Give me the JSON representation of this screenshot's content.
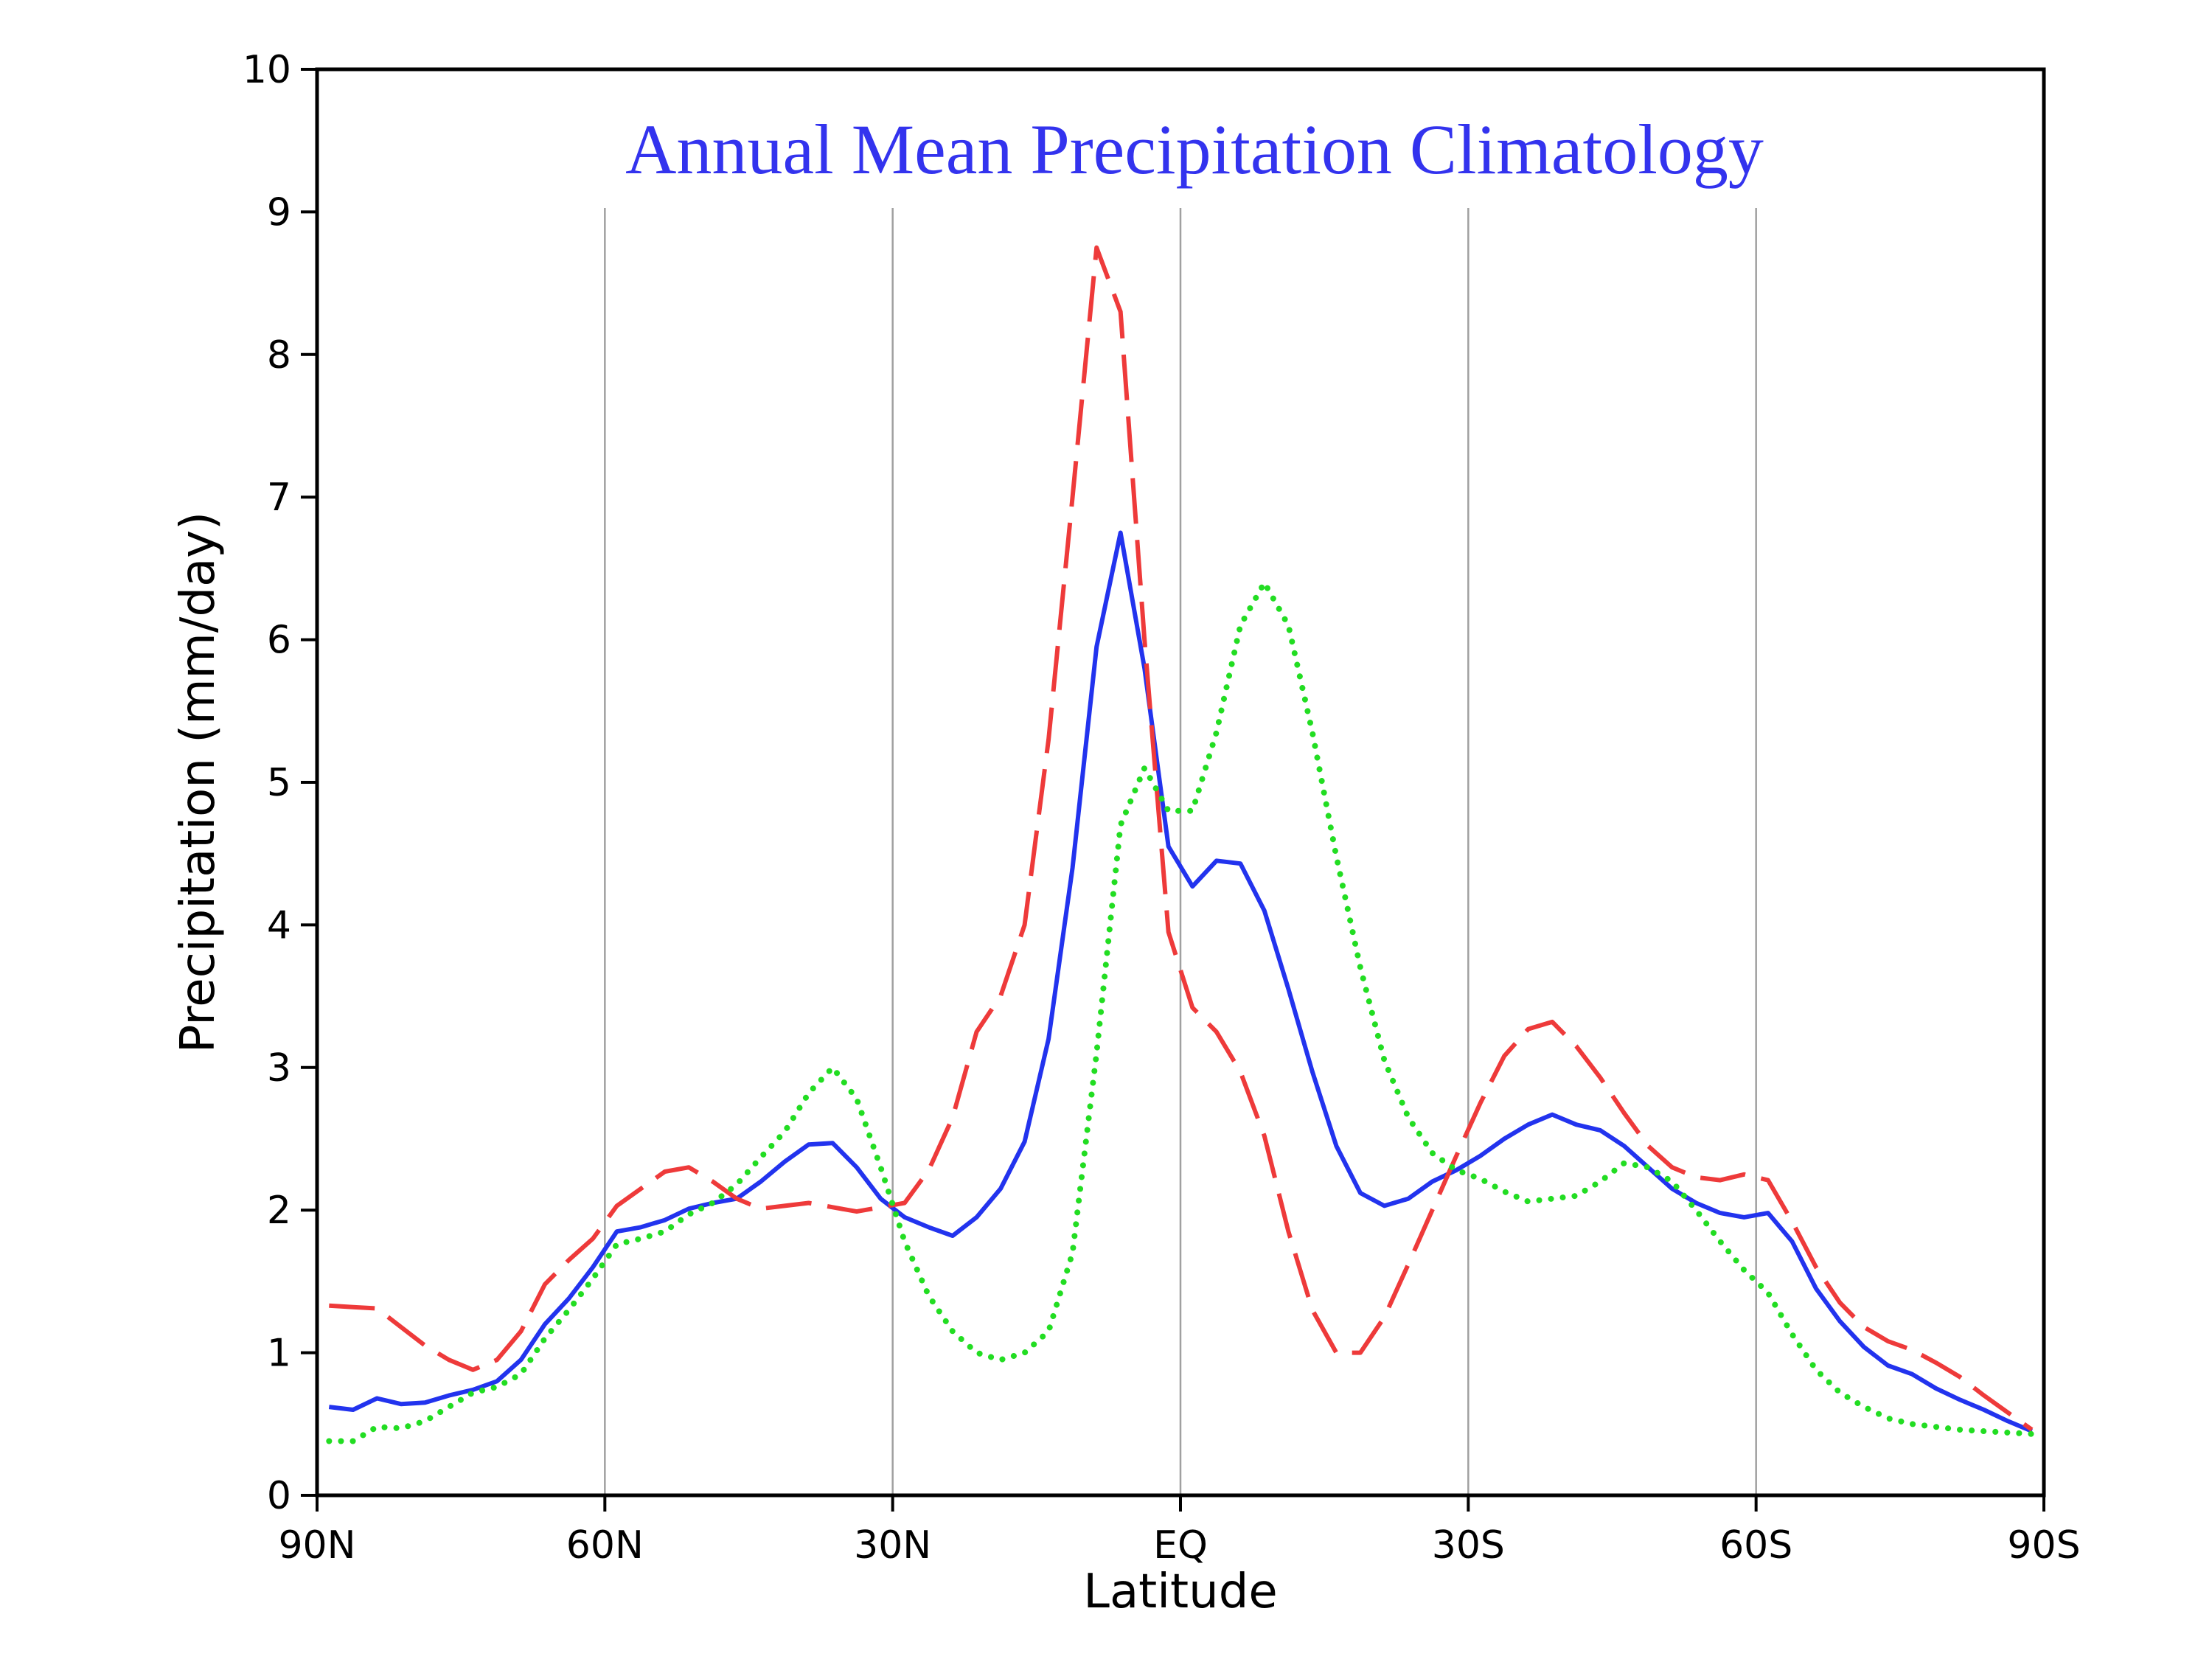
{
  "chart_data": {
    "type": "line",
    "title": "Annual Mean Precipitation Climatology",
    "xlabel": "Latitude",
    "ylabel": "Precipitation  (mm/day)",
    "xlim": [
      90,
      -90
    ],
    "ylim": [
      0,
      10
    ],
    "x_ticks": [
      90,
      60,
      30,
      0,
      -30,
      -60,
      -90
    ],
    "x_tick_labels": [
      "90N",
      "60N",
      "30N",
      "EQ",
      "30S",
      "60S",
      "90S"
    ],
    "y_ticks": [
      0,
      1,
      2,
      3,
      4,
      5,
      6,
      7,
      8,
      9,
      10
    ],
    "y_tick_labels": [
      "0",
      "1",
      "2",
      "3",
      "4",
      "5",
      "6",
      "7",
      "8",
      "9",
      "10"
    ],
    "grid": "vertical",
    "colors": {
      "title": "#3333ee",
      "frame": "#000000",
      "grid": "#a0a0a0"
    },
    "series": [
      {
        "color": "#2233ee",
        "style": "solid",
        "points": [
          [
            88.75,
            0.62
          ],
          [
            86.25,
            0.6
          ],
          [
            83.75,
            0.68
          ],
          [
            81.25,
            0.64
          ],
          [
            78.75,
            0.65
          ],
          [
            76.25,
            0.7
          ],
          [
            73.75,
            0.74
          ],
          [
            71.25,
            0.8
          ],
          [
            68.75,
            0.95
          ],
          [
            66.25,
            1.2
          ],
          [
            63.75,
            1.38
          ],
          [
            61.25,
            1.6
          ],
          [
            58.75,
            1.85
          ],
          [
            56.25,
            1.88
          ],
          [
            53.75,
            1.93
          ],
          [
            51.25,
            2.01
          ],
          [
            48.75,
            2.05
          ],
          [
            46.25,
            2.08
          ],
          [
            43.75,
            2.2
          ],
          [
            41.25,
            2.34
          ],
          [
            38.75,
            2.46
          ],
          [
            36.25,
            2.47
          ],
          [
            33.75,
            2.3
          ],
          [
            31.25,
            2.08
          ],
          [
            28.75,
            1.95
          ],
          [
            26.25,
            1.88
          ],
          [
            23.75,
            1.82
          ],
          [
            21.25,
            1.95
          ],
          [
            18.75,
            2.15
          ],
          [
            16.25,
            2.48
          ],
          [
            13.75,
            3.2
          ],
          [
            11.25,
            4.4
          ],
          [
            8.75,
            5.95
          ],
          [
            6.25,
            6.75
          ],
          [
            3.75,
            5.8
          ],
          [
            1.25,
            4.55
          ],
          [
            -1.25,
            4.27
          ],
          [
            -3.75,
            4.45
          ],
          [
            -6.25,
            4.43
          ],
          [
            -8.75,
            4.1
          ],
          [
            -11.25,
            3.55
          ],
          [
            -13.75,
            2.97
          ],
          [
            -16.25,
            2.45
          ],
          [
            -18.75,
            2.12
          ],
          [
            -21.25,
            2.03
          ],
          [
            -23.75,
            2.08
          ],
          [
            -26.25,
            2.2
          ],
          [
            -28.75,
            2.28
          ],
          [
            -31.25,
            2.38
          ],
          [
            -33.75,
            2.5
          ],
          [
            -36.25,
            2.6
          ],
          [
            -38.75,
            2.67
          ],
          [
            -41.25,
            2.6
          ],
          [
            -43.75,
            2.56
          ],
          [
            -46.25,
            2.45
          ],
          [
            -48.75,
            2.3
          ],
          [
            -51.25,
            2.15
          ],
          [
            -53.75,
            2.05
          ],
          [
            -56.25,
            1.98
          ],
          [
            -58.75,
            1.95
          ],
          [
            -61.25,
            1.98
          ],
          [
            -63.75,
            1.78
          ],
          [
            -66.25,
            1.45
          ],
          [
            -68.75,
            1.22
          ],
          [
            -71.25,
            1.04
          ],
          [
            -73.75,
            0.91
          ],
          [
            -76.25,
            0.85
          ],
          [
            -78.75,
            0.75
          ],
          [
            -81.25,
            0.67
          ],
          [
            -83.75,
            0.6
          ],
          [
            -86.25,
            0.52
          ],
          [
            -88.75,
            0.45
          ]
        ]
      },
      {
        "color": "#ee3a3a",
        "style": "dashed",
        "points": [
          [
            88.75,
            1.33
          ],
          [
            86.25,
            1.32
          ],
          [
            83.75,
            1.31
          ],
          [
            81.25,
            1.18
          ],
          [
            78.75,
            1.05
          ],
          [
            76.25,
            0.95
          ],
          [
            73.75,
            0.88
          ],
          [
            71.25,
            0.95
          ],
          [
            68.75,
            1.15
          ],
          [
            66.25,
            1.48
          ],
          [
            63.75,
            1.65
          ],
          [
            61.25,
            1.8
          ],
          [
            58.75,
            2.03
          ],
          [
            56.25,
            2.15
          ],
          [
            53.75,
            2.27
          ],
          [
            51.25,
            2.3
          ],
          [
            48.75,
            2.2
          ],
          [
            46.25,
            2.08
          ],
          [
            43.75,
            2.01
          ],
          [
            41.25,
            2.03
          ],
          [
            38.75,
            2.05
          ],
          [
            36.25,
            2.02
          ],
          [
            33.75,
            1.99
          ],
          [
            31.25,
            2.02
          ],
          [
            28.75,
            2.05
          ],
          [
            26.25,
            2.28
          ],
          [
            23.75,
            2.65
          ],
          [
            21.25,
            3.25
          ],
          [
            18.75,
            3.5
          ],
          [
            16.25,
            4.0
          ],
          [
            13.75,
            5.3
          ],
          [
            11.25,
            7.0
          ],
          [
            8.75,
            8.75
          ],
          [
            6.25,
            8.3
          ],
          [
            3.75,
            6.0
          ],
          [
            1.25,
            3.95
          ],
          [
            -1.25,
            3.42
          ],
          [
            -3.75,
            3.25
          ],
          [
            -6.25,
            2.97
          ],
          [
            -8.75,
            2.52
          ],
          [
            -11.25,
            1.85
          ],
          [
            -13.75,
            1.3
          ],
          [
            -16.25,
            1.0
          ],
          [
            -18.75,
            1.0
          ],
          [
            -21.25,
            1.25
          ],
          [
            -23.75,
            1.62
          ],
          [
            -26.25,
            2.0
          ],
          [
            -28.75,
            2.38
          ],
          [
            -31.25,
            2.75
          ],
          [
            -33.75,
            3.08
          ],
          [
            -36.25,
            3.27
          ],
          [
            -38.75,
            3.32
          ],
          [
            -41.25,
            3.15
          ],
          [
            -43.75,
            2.93
          ],
          [
            -46.25,
            2.68
          ],
          [
            -48.75,
            2.45
          ],
          [
            -51.25,
            2.3
          ],
          [
            -53.75,
            2.23
          ],
          [
            -56.25,
            2.21
          ],
          [
            -58.75,
            2.25
          ],
          [
            -61.25,
            2.21
          ],
          [
            -63.75,
            1.92
          ],
          [
            -66.25,
            1.6
          ],
          [
            -68.75,
            1.35
          ],
          [
            -71.25,
            1.18
          ],
          [
            -73.75,
            1.08
          ],
          [
            -76.25,
            1.02
          ],
          [
            -78.75,
            0.93
          ],
          [
            -81.25,
            0.83
          ],
          [
            -83.75,
            0.7
          ],
          [
            -86.25,
            0.58
          ],
          [
            -88.75,
            0.46
          ]
        ]
      },
      {
        "color": "#22dd22",
        "style": "dotted",
        "points": [
          [
            88.75,
            0.38
          ],
          [
            86.25,
            0.38
          ],
          [
            83.75,
            0.48
          ],
          [
            81.25,
            0.47
          ],
          [
            78.75,
            0.52
          ],
          [
            76.25,
            0.62
          ],
          [
            73.75,
            0.72
          ],
          [
            71.25,
            0.76
          ],
          [
            68.75,
            0.85
          ],
          [
            66.25,
            1.1
          ],
          [
            63.75,
            1.3
          ],
          [
            61.25,
            1.52
          ],
          [
            58.75,
            1.76
          ],
          [
            56.25,
            1.8
          ],
          [
            53.75,
            1.85
          ],
          [
            51.25,
            1.97
          ],
          [
            48.75,
            2.05
          ],
          [
            46.25,
            2.18
          ],
          [
            43.75,
            2.37
          ],
          [
            41.25,
            2.55
          ],
          [
            38.75,
            2.82
          ],
          [
            36.25,
            3.0
          ],
          [
            33.75,
            2.78
          ],
          [
            31.25,
            2.3
          ],
          [
            28.75,
            1.78
          ],
          [
            26.25,
            1.4
          ],
          [
            23.75,
            1.15
          ],
          [
            21.25,
            1.0
          ],
          [
            18.75,
            0.95
          ],
          [
            16.25,
            1.0
          ],
          [
            13.75,
            1.15
          ],
          [
            11.25,
            1.7
          ],
          [
            8.75,
            3.1
          ],
          [
            6.25,
            4.7
          ],
          [
            3.75,
            5.1
          ],
          [
            1.25,
            4.8
          ],
          [
            -1.25,
            4.8
          ],
          [
            -3.75,
            5.35
          ],
          [
            -6.25,
            6.1
          ],
          [
            -8.75,
            6.4
          ],
          [
            -11.25,
            6.1
          ],
          [
            -13.75,
            5.35
          ],
          [
            -16.25,
            4.48
          ],
          [
            -18.75,
            3.7
          ],
          [
            -21.25,
            3.05
          ],
          [
            -23.75,
            2.65
          ],
          [
            -26.25,
            2.4
          ],
          [
            -28.75,
            2.28
          ],
          [
            -31.25,
            2.22
          ],
          [
            -33.75,
            2.13
          ],
          [
            -36.25,
            2.06
          ],
          [
            -38.75,
            2.08
          ],
          [
            -41.25,
            2.1
          ],
          [
            -43.75,
            2.2
          ],
          [
            -46.25,
            2.33
          ],
          [
            -48.75,
            2.3
          ],
          [
            -51.25,
            2.2
          ],
          [
            -53.75,
            2.0
          ],
          [
            -56.25,
            1.78
          ],
          [
            -58.75,
            1.58
          ],
          [
            -61.25,
            1.42
          ],
          [
            -63.75,
            1.13
          ],
          [
            -66.25,
            0.88
          ],
          [
            -68.75,
            0.72
          ],
          [
            -71.25,
            0.62
          ],
          [
            -73.75,
            0.54
          ],
          [
            -76.25,
            0.5
          ],
          [
            -78.75,
            0.48
          ],
          [
            -81.25,
            0.46
          ],
          [
            -83.75,
            0.45
          ],
          [
            -86.25,
            0.44
          ],
          [
            -88.75,
            0.43
          ]
        ]
      }
    ]
  }
}
